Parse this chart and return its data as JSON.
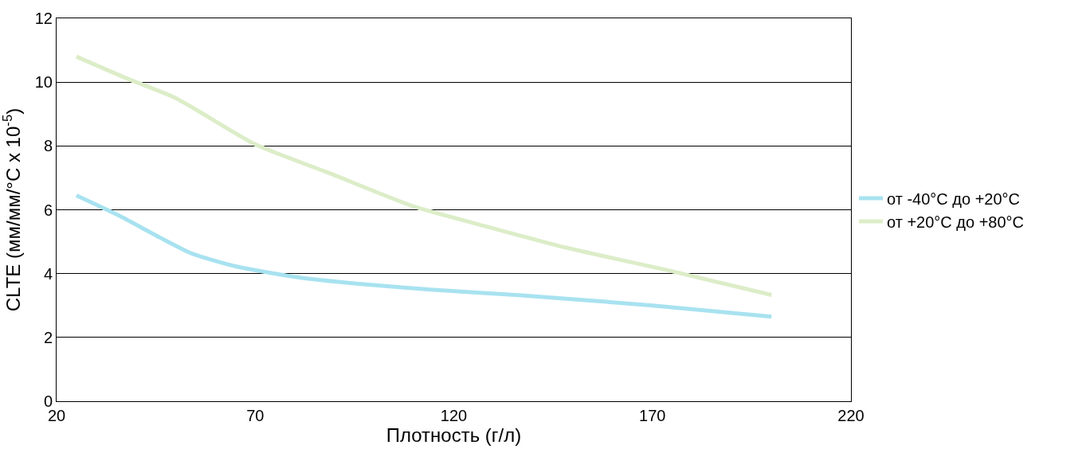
{
  "chart_data": {
    "type": "line",
    "xlabel": "Плотность (г/л)",
    "ylabel": "CLTE (мм/мм/°C x 10$^{-5}$)",
    "xlim": [
      20,
      220
    ],
    "xticks": [
      20,
      70,
      120,
      170,
      220
    ],
    "ylim": [
      0,
      12
    ],
    "yticks": [
      0,
      2,
      4,
      6,
      8,
      10,
      12
    ],
    "grid": "y",
    "legend": "right",
    "marker": "none",
    "line_style": "solid",
    "series": [
      {
        "name": "от -40°C до +20°C",
        "color": "#a8e2f0",
        "x": [
          25,
          36,
          46,
          54,
          65,
          80,
          96,
          114,
          137,
          170,
          200
        ],
        "values": [
          6.45,
          5.8,
          5.13,
          4.63,
          4.23,
          3.9,
          3.68,
          3.5,
          3.32,
          3.0,
          2.65
        ]
      },
      {
        "name": "от +20°C до +80°C",
        "color": "#dcedc8",
        "x": [
          25,
          38,
          50,
          70,
          88,
          110,
          126,
          148,
          174,
          200
        ],
        "values": [
          10.8,
          10.1,
          9.5,
          8.05,
          7.18,
          6.1,
          5.55,
          4.82,
          4.1,
          3.33
        ]
      }
    ]
  }
}
